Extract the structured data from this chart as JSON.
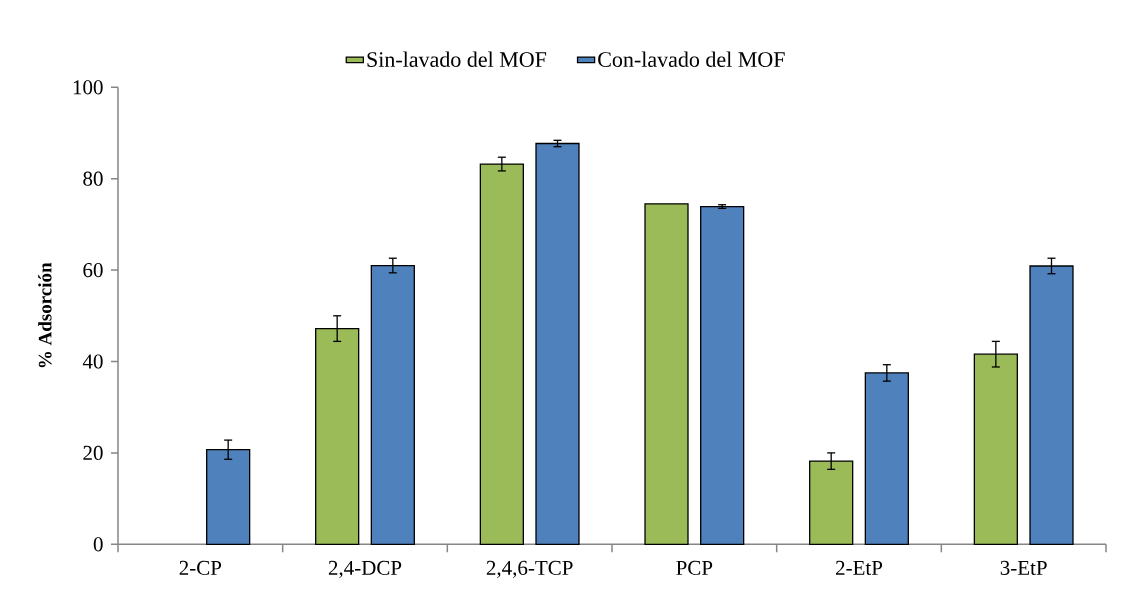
{
  "chart_data": {
    "type": "bar",
    "ylabel": "% Adsorción",
    "categories": [
      "2-CP",
      "2,4-DCP",
      "2,4,6-TCP",
      "PCP",
      "2-EtP",
      "3-EtP"
    ],
    "series": [
      {
        "name": "Sin-lavado del MOF",
        "color": "#9bbb59",
        "values": [
          null,
          47.2,
          83.2,
          74.5,
          18.2,
          41.6
        ],
        "errors": [
          null,
          2.8,
          1.5,
          null,
          1.8,
          2.8
        ]
      },
      {
        "name": "Con-lavado del MOF",
        "color": "#4f81bd",
        "values": [
          20.7,
          61.0,
          87.7,
          73.9,
          37.5,
          60.9
        ],
        "errors": [
          2.1,
          1.6,
          0.7,
          0.4,
          1.8,
          1.7
        ]
      }
    ],
    "ylim": [
      0,
      100
    ],
    "yticks": [
      0,
      20,
      40,
      60,
      80,
      100
    ],
    "legend": "top"
  }
}
